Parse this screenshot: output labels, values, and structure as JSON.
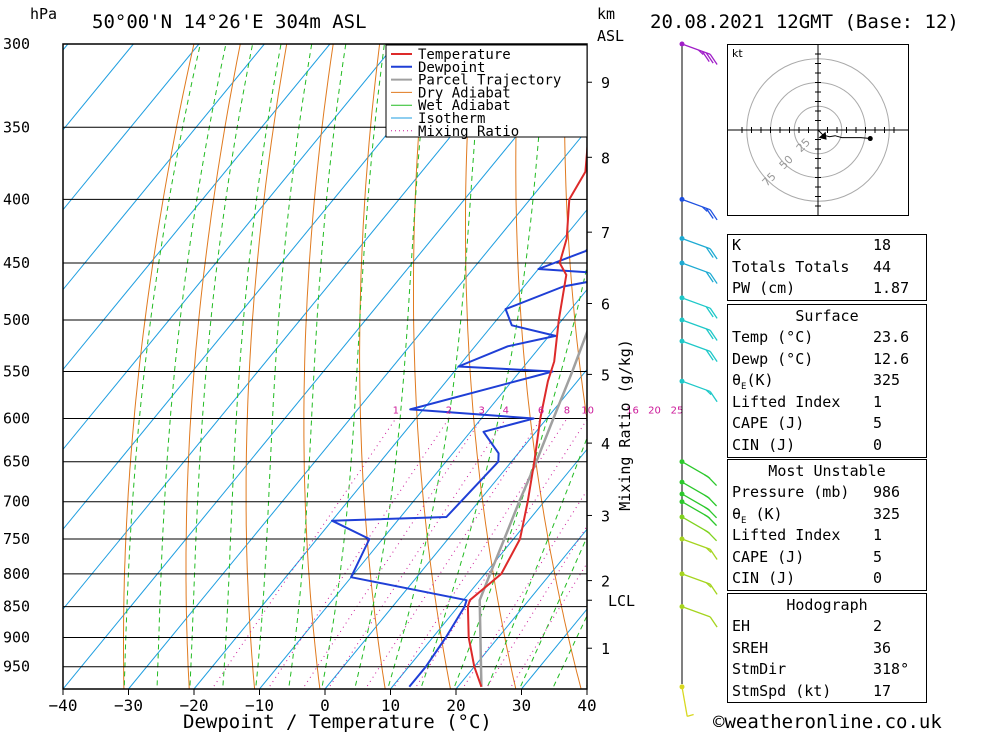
{
  "header": {
    "pressure_unit": "hPa",
    "location": "50°00'N 14°26'E 304m ASL",
    "height_unit": "km",
    "height_ref": "ASL",
    "datetime": "20.08.2021 12GMT (Base: 12)"
  },
  "footer": {
    "xlabel": "Dewpoint / Temperature (°C)",
    "copyright": "©weatheronline.co.uk"
  },
  "colors": {
    "temperature": "#dd2a2a",
    "dewpoint": "#1f3fd6",
    "parcel": "#a0a0a0",
    "dry_adiabat": "#e07a1f",
    "wet_adiabat": "#22bb22",
    "isotherm": "#1e9ee0",
    "mixing_ratio": "#cc1a9a"
  },
  "chart_data": {
    "type": "line",
    "title": "Skew-T log-P diagram",
    "xlabel": "Dewpoint / Temperature (°C)",
    "ylabel": "hPa",
    "xlim": [
      -40,
      40
    ],
    "ylim": [
      990,
      300
    ],
    "x_ticks": [
      -40,
      -30,
      -20,
      -10,
      0,
      10,
      20,
      30,
      40
    ],
    "y_ticks": [
      300,
      350,
      400,
      450,
      500,
      550,
      600,
      650,
      700,
      750,
      800,
      850,
      900,
      950
    ],
    "height_ticks_km": [
      {
        "label": "1",
        "p": 918
      },
      {
        "label": "2",
        "p": 810
      },
      {
        "label": "LCL",
        "p": 840
      },
      {
        "label": "3",
        "p": 718
      },
      {
        "label": "4",
        "p": 628
      },
      {
        "label": "5",
        "p": 553
      },
      {
        "label": "6",
        "p": 485
      },
      {
        "label": "7",
        "p": 425
      },
      {
        "label": "8",
        "p": 370
      },
      {
        "label": "9",
        "p": 322
      }
    ],
    "mixing_ratio_axis_label": "Mixing Ratio (g/kg)",
    "mixing_ratio_labels": [
      "1",
      "2",
      "3",
      "4",
      "6",
      "8",
      "10",
      "16",
      "20",
      "25"
    ],
    "mixing_ratio_values": [
      1,
      2,
      3,
      4,
      6,
      8,
      10,
      16,
      20,
      25
    ],
    "legend": [
      "Temperature",
      "Dewpoint",
      "Parcel Trajectory",
      "Dry Adiabat",
      "Wet Adiabat",
      "Isotherm",
      "Mixing Ratio"
    ],
    "series": [
      {
        "name": "Temperature",
        "points": [
          [
            986,
            23.6
          ],
          [
            950,
            20.0
          ],
          [
            900,
            15.5
          ],
          [
            850,
            11.5
          ],
          [
            840,
            11.0
          ],
          [
            800,
            12.5
          ],
          [
            750,
            11.0
          ],
          [
            700,
            7.5
          ],
          [
            650,
            3.5
          ],
          [
            600,
            -1.0
          ],
          [
            560,
            -4.5
          ],
          [
            540,
            -6.0
          ],
          [
            500,
            -10.5
          ],
          [
            460,
            -15.0
          ],
          [
            450,
            -17.5
          ],
          [
            430,
            -19.5
          ],
          [
            400,
            -24.0
          ],
          [
            380,
            -25.0
          ],
          [
            350,
            -30.0
          ],
          [
            320,
            -35.0
          ],
          [
            300,
            -39.0
          ]
        ]
      },
      {
        "name": "Dewpoint",
        "points": [
          [
            986,
            12.6
          ],
          [
            950,
            12.6
          ],
          [
            900,
            12.0
          ],
          [
            850,
            11.0
          ],
          [
            840,
            10.5
          ],
          [
            805,
            -10.0
          ],
          [
            750,
            -12.0
          ],
          [
            725,
            -20.0
          ],
          [
            720,
            -3.0
          ],
          [
            650,
            -2.0
          ],
          [
            640,
            -3.0
          ],
          [
            615,
            -8.0
          ],
          [
            600,
            -2.0
          ],
          [
            590,
            -22.0
          ],
          [
            550,
            -5.0
          ],
          [
            545,
            -20.0
          ],
          [
            525,
            -15.0
          ],
          [
            515,
            -9.0
          ],
          [
            505,
            -17.0
          ],
          [
            490,
            -20.0
          ],
          [
            470,
            -14.0
          ],
          [
            460,
            -6.0
          ],
          [
            455,
            -20.0
          ],
          [
            440,
            -15.0
          ],
          [
            430,
            -15.0
          ],
          [
            410,
            -6.0
          ],
          [
            400,
            -6.5
          ],
          [
            385,
            -7.0
          ],
          [
            350,
            -16.0
          ],
          [
            320,
            -24.0
          ],
          [
            310,
            -27.0
          ],
          [
            300,
            -26.5
          ]
        ]
      },
      {
        "name": "Parcel Trajectory",
        "points": [
          [
            986,
            23.6
          ],
          [
            840,
            12.5
          ],
          [
            800,
            10.8
          ],
          [
            750,
            8.6
          ],
          [
            700,
            6.2
          ],
          [
            650,
            3.8
          ],
          [
            600,
            1.0
          ],
          [
            550,
            -2.0
          ],
          [
            500,
            -5.5
          ],
          [
            450,
            -10.0
          ],
          [
            400,
            -15.5
          ],
          [
            350,
            -22.0
          ],
          [
            300,
            -30.0
          ]
        ]
      }
    ]
  },
  "wind_barbs": [
    {
      "p": 986,
      "dir": 190,
      "speed_kt": 5,
      "color": "#d8d820"
    },
    {
      "p": 850,
      "dir": 250,
      "speed_kt": 10,
      "color": "#a5d41e"
    },
    {
      "p": 800,
      "dir": 250,
      "speed_kt": 15,
      "color": "#a5d41e"
    },
    {
      "p": 750,
      "dir": 250,
      "speed_kt": 15,
      "color": "#a5d41e"
    },
    {
      "p": 720,
      "dir": 240,
      "speed_kt": 15,
      "color": "#7fd21e"
    },
    {
      "p": 700,
      "dir": 240,
      "speed_kt": 15,
      "color": "#2cc82c"
    },
    {
      "p": 690,
      "dir": 240,
      "speed_kt": 15,
      "color": "#2cc82c"
    },
    {
      "p": 675,
      "dir": 240,
      "speed_kt": 15,
      "color": "#2cc82c"
    },
    {
      "p": 650,
      "dir": 240,
      "speed_kt": 15,
      "color": "#2cc82c"
    },
    {
      "p": 560,
      "dir": 250,
      "speed_kt": 15,
      "color": "#1ec8c8"
    },
    {
      "p": 520,
      "dir": 250,
      "speed_kt": 20,
      "color": "#1ec8c8"
    },
    {
      "p": 500,
      "dir": 250,
      "speed_kt": 20,
      "color": "#1ec8c8"
    },
    {
      "p": 480,
      "dir": 250,
      "speed_kt": 20,
      "color": "#1ec8c8"
    },
    {
      "p": 450,
      "dir": 250,
      "speed_kt": 20,
      "color": "#1eaad2"
    },
    {
      "p": 430,
      "dir": 250,
      "speed_kt": 20,
      "color": "#1eaad2"
    },
    {
      "p": 400,
      "dir": 250,
      "speed_kt": 25,
      "color": "#1e50e0"
    },
    {
      "p": 300,
      "dir": 250,
      "speed_kt": 35,
      "color": "#a01ec8"
    }
  ],
  "hodograph": {
    "unit_label": "kt",
    "ring_labels": [
      "25",
      "50",
      "75"
    ],
    "points_uv": [
      [
        0,
        0
      ],
      [
        2,
        -2
      ],
      [
        5,
        -5
      ],
      [
        8,
        -6
      ],
      [
        12,
        -7
      ],
      [
        18,
        -6
      ],
      [
        25,
        -8
      ],
      [
        32,
        -8
      ],
      [
        45,
        -8
      ],
      [
        55,
        -9
      ]
    ],
    "storm_motion_uv": [
      8,
      -6
    ]
  },
  "indices": {
    "k_label": "K",
    "k_value": "18",
    "tt_label": "Totals Totals",
    "tt_value": "44",
    "pw_label": "PW (cm)",
    "pw_value": "1.87"
  },
  "surface": {
    "title": "Surface",
    "temp_label": "Temp (°C)",
    "temp_value": "23.6",
    "dewp_label": "Dewp (°C)",
    "dewp_value": "12.6",
    "theta_label": "θ",
    "theta_sub": "E",
    "theta_unit": "(K)",
    "theta_value": "325",
    "li_label": "Lifted Index",
    "li_value": "1",
    "cape_label": "CAPE (J)",
    "cape_value": "5",
    "cin_label": "CIN (J)",
    "cin_value": "0"
  },
  "most_unstable": {
    "title": "Most Unstable",
    "pressure_label": "Pressure (mb)",
    "pressure_value": "986",
    "theta_label": "θ",
    "theta_sub": "E",
    "theta_unit": " (K)",
    "theta_value": "325",
    "li_label": "Lifted Index",
    "li_value": "1",
    "cape_label": "CAPE (J)",
    "cape_value": "5",
    "cin_label": "CIN (J)",
    "cin_value": "0"
  },
  "hodograph_stats": {
    "title": "Hodograph",
    "eh_label": "EH",
    "eh_value": "2",
    "sreh_label": "SREH",
    "sreh_value": "36",
    "stmdir_label": "StmDir",
    "stmdir_value": "318°",
    "stmspd_label": "StmSpd (kt)",
    "stmspd_value": "17"
  }
}
